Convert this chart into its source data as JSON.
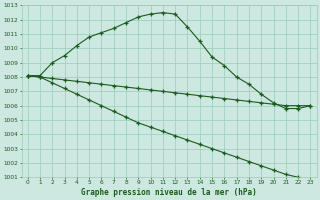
{
  "line1": [
    1008.1,
    1008.1,
    1009.0,
    1009.5,
    1010.2,
    1010.8,
    1011.1,
    1011.4,
    1011.8,
    1012.2,
    1012.4,
    1012.5,
    1012.4,
    1011.5,
    1010.5,
    1009.4,
    1008.8,
    1008.0,
    1007.5,
    1006.8,
    1006.2,
    1005.8,
    1005.8,
    1006.0
  ],
  "line2": [
    1008.1,
    1008.0,
    1007.9,
    1007.8,
    1007.7,
    1007.6,
    1007.5,
    1007.4,
    1007.3,
    1007.2,
    1007.1,
    1007.0,
    1006.9,
    1006.8,
    1006.7,
    1006.6,
    1006.5,
    1006.4,
    1006.3,
    1006.2,
    1006.1,
    1006.0,
    1006.0,
    1006.0
  ],
  "line3": [
    1008.1,
    1008.0,
    1007.6,
    1007.2,
    1006.8,
    1006.4,
    1006.0,
    1005.6,
    1005.2,
    1004.8,
    1004.5,
    1004.2,
    1003.9,
    1003.6,
    1003.3,
    1003.0,
    1002.7,
    1002.4,
    1002.1,
    1001.8,
    1001.5,
    1001.2,
    1001.0,
    1000.6
  ],
  "bg_color": "#cce8e0",
  "grid_color": "#99ccbb",
  "line_color": "#1a5c1a",
  "xlabel": "Graphe pression niveau de la mer (hPa)",
  "xmin": 0,
  "xmax": 23,
  "ymin": 1001,
  "ymax": 1013,
  "yticks": [
    1001,
    1002,
    1003,
    1004,
    1005,
    1006,
    1007,
    1008,
    1009,
    1010,
    1011,
    1012,
    1013
  ],
  "xticks": [
    0,
    1,
    2,
    3,
    4,
    5,
    6,
    7,
    8,
    9,
    10,
    11,
    12,
    13,
    14,
    15,
    16,
    17,
    18,
    19,
    20,
    21,
    22,
    23
  ],
  "figwidth": 3.2,
  "figheight": 2.0,
  "dpi": 100
}
